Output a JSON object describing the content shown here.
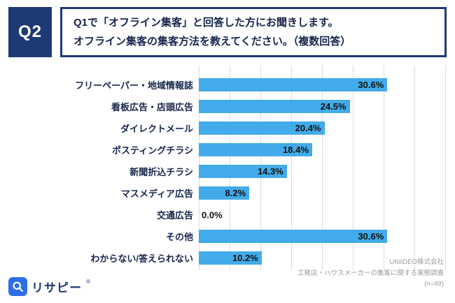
{
  "header": {
    "q_label": "Q2",
    "question_line1": "Q1で「オフライン集客」と回答した方にお聞きします。",
    "question_line2": "オフライン集客の集客方法を教えてください。（複数回答）"
  },
  "chart_data": {
    "type": "bar",
    "orientation": "horizontal",
    "title": "",
    "categories": [
      "フリーペーパー・地域情報誌",
      "看板広告・店頭広告",
      "ダイレクトメール",
      "ポスティングチラシ",
      "新聞折込チラシ",
      "マスメディア広告",
      "交通広告",
      "その他",
      "わからない/答えられない"
    ],
    "values": [
      30.6,
      24.5,
      20.4,
      18.4,
      14.3,
      8.2,
      0.0,
      30.6,
      10.2
    ],
    "value_labels": [
      "30.6%",
      "24.5%",
      "20.4%",
      "18.4%",
      "14.3%",
      "8.2%",
      "0.0%",
      "30.6%",
      "10.2%"
    ],
    "xlim": [
      0,
      40
    ],
    "grid_interval": 5,
    "grid": true,
    "legend": false,
    "bar_color": "#42abe9"
  },
  "footer": {
    "logo_text": "リサピー",
    "registered_mark": "®",
    "source_line1": "UNIIDEO株式会社",
    "source_line2": "工務店・ハウスメーカーの集客に関する実態調査",
    "source_line3": "(n=49)"
  },
  "colors": {
    "navy": "#1e3a74",
    "bar_blue": "#42abe9",
    "logo_blue": "#2e6fe8",
    "grid_gray": "#dcdcdc",
    "source_gray": "#999999"
  }
}
